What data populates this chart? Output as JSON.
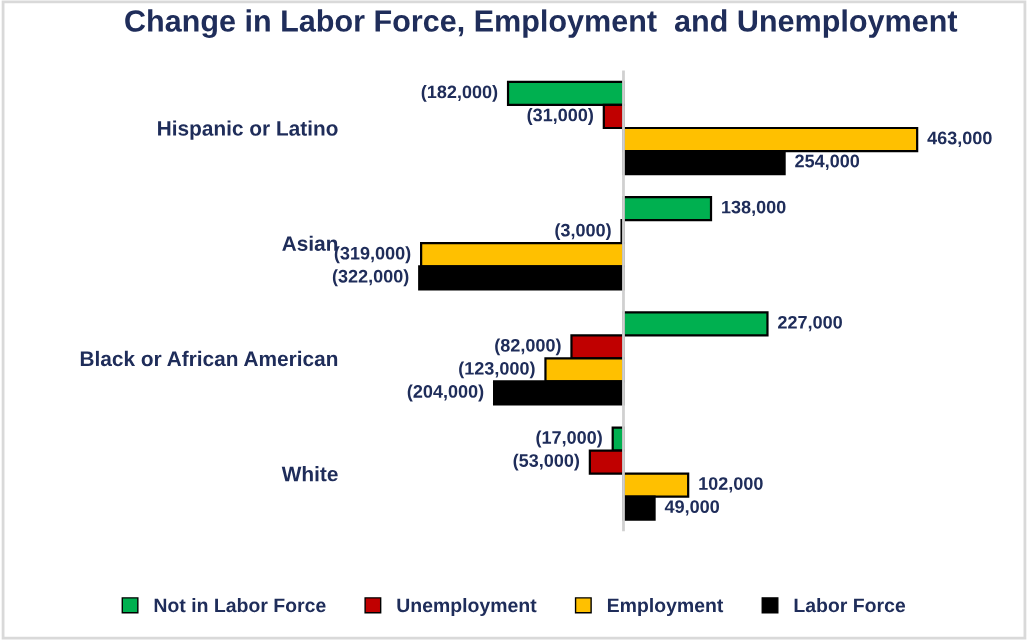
{
  "chart_data": {
    "type": "bar",
    "orientation": "horizontal",
    "title": "Change in Labor Force, Employment  and Unemployment",
    "categories": [
      "Hispanic or Latino",
      "Asian",
      "Black or African American",
      "White"
    ],
    "series": [
      {
        "name": "Not in Labor Force",
        "color": "#00b050",
        "values": [
          -182000,
          138000,
          227000,
          -17000
        ],
        "value_labels": [
          "(182,000)",
          "138,000",
          "227,000",
          "(17,000)"
        ]
      },
      {
        "name": "Unemployment",
        "color": "#c00000",
        "values": [
          -31000,
          -3000,
          -82000,
          -53000
        ],
        "value_labels": [
          "(31,000)",
          "(3,000)",
          "(82,000)",
          "(53,000)"
        ]
      },
      {
        "name": "Employment",
        "color": "#ffc000",
        "values": [
          463000,
          -319000,
          -123000,
          102000
        ],
        "value_labels": [
          "463,000",
          "(319,000)",
          "(123,000)",
          "102,000"
        ]
      },
      {
        "name": "Labor Force",
        "color": "#000000",
        "values": [
          254000,
          -322000,
          -204000,
          49000
        ],
        "value_labels": [
          "254,000",
          "(322,000)",
          "(204,000)",
          "49,000"
        ]
      }
    ],
    "tick_labels": "y",
    "grid": false,
    "legend": "bottom"
  }
}
